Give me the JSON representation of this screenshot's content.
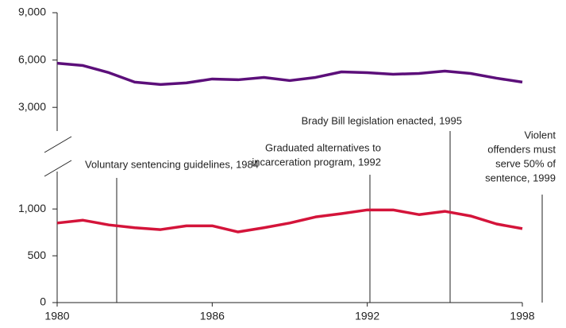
{
  "chart_data": {
    "type": "line",
    "x": [
      1980,
      1981,
      1982,
      1983,
      1984,
      1985,
      1986,
      1987,
      1988,
      1989,
      1990,
      1991,
      1992,
      1993,
      1994,
      1995,
      1996,
      1997,
      1998
    ],
    "xlim": [
      1980,
      1998
    ],
    "xticks": [
      1980,
      1986,
      1992,
      1998
    ],
    "panels": [
      {
        "ylim": [
          1500,
          9000
        ],
        "yticks": [
          {
            "value": 3000,
            "label": "3,000"
          },
          {
            "value": 6000,
            "label": "6,000"
          },
          {
            "value": 9000,
            "label": "9,000"
          }
        ],
        "series": [
          {
            "color": "#5c0f7a",
            "values": [
              5800,
              5650,
              5200,
              4600,
              4450,
              4550,
              4800,
              4750,
              4900,
              4700,
              4900,
              5250,
              5200,
              5100,
              5150,
              5300,
              5150,
              4850,
              4600
            ]
          }
        ]
      },
      {
        "ylim": [
          0,
          1400
        ],
        "yticks": [
          0,
          500,
          {
            "value": 1000,
            "label": "1,000"
          }
        ],
        "series": [
          {
            "color": "#d4143a",
            "values": [
              850,
              880,
              830,
              800,
              780,
              820,
              820,
              755,
              800,
              850,
              915,
              950,
              990,
              990,
              940,
              975,
              925,
              840,
              790
            ]
          }
        ]
      }
    ],
    "annotations": [
      [
        "Voluntary sentencing guidelines, 1984"
      ],
      [
        "Graduated alternatives to",
        "incarceration program, 1992"
      ],
      [
        "Brady Bill legislation enacted, 1995"
      ],
      [
        "Violent",
        "offenders must",
        "serve 50% of",
        "sentence, 1999"
      ]
    ]
  }
}
